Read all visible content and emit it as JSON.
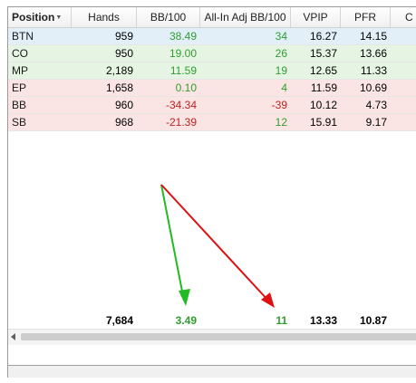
{
  "columns": [
    {
      "id": "position",
      "label": "Position",
      "sorted": true
    },
    {
      "id": "hands",
      "label": "Hands"
    },
    {
      "id": "bb100",
      "label": "BB/100"
    },
    {
      "id": "allin",
      "label": "All-In Adj BB/100"
    },
    {
      "id": "vpip",
      "label": "VPIP"
    },
    {
      "id": "pfr",
      "label": "PFR"
    },
    {
      "id": "more",
      "label": "C"
    }
  ],
  "rows": [
    {
      "position": "BTN",
      "hands": "959",
      "bb100": "38.49",
      "allin": "34",
      "vpip": "16.27",
      "pfr": "14.15",
      "bg": "#e2eff9",
      "bb_color": "green",
      "allin_color": "green"
    },
    {
      "position": "CO",
      "hands": "950",
      "bb100": "19.00",
      "allin": "26",
      "vpip": "15.37",
      "pfr": "13.66",
      "bg": "#e6f5e3",
      "bb_color": "green",
      "allin_color": "green"
    },
    {
      "position": "MP",
      "hands": "2,189",
      "bb100": "11.59",
      "allin": "19",
      "vpip": "12.65",
      "pfr": "11.33",
      "bg": "#e6f5e3",
      "bb_color": "green",
      "allin_color": "green"
    },
    {
      "position": "EP",
      "hands": "1,658",
      "bb100": "0.10",
      "allin": "4",
      "vpip": "11.59",
      "pfr": "10.69",
      "bg": "#fbe4e4",
      "bb_color": "green",
      "allin_color": "green"
    },
    {
      "position": "BB",
      "hands": "960",
      "bb100": "-34.34",
      "allin": "-39",
      "vpip": "10.12",
      "pfr": "4.73",
      "bg": "#fbe4e4",
      "bb_color": "red",
      "allin_color": "red"
    },
    {
      "position": "SB",
      "hands": "968",
      "bb100": "-21.39",
      "allin": "12",
      "vpip": "15.91",
      "pfr": "9.17",
      "bg": "#fbe4e4",
      "bb_color": "red",
      "allin_color": "green"
    }
  ],
  "totals": {
    "hands": "7,684",
    "bb100": "3.49",
    "allin": "11",
    "vpip": "13.33",
    "pfr": "10.87"
  },
  "arrows": [
    {
      "name": "green-arrow",
      "color": "#22bb22"
    },
    {
      "name": "red-arrow",
      "color": "#dd1111"
    }
  ]
}
